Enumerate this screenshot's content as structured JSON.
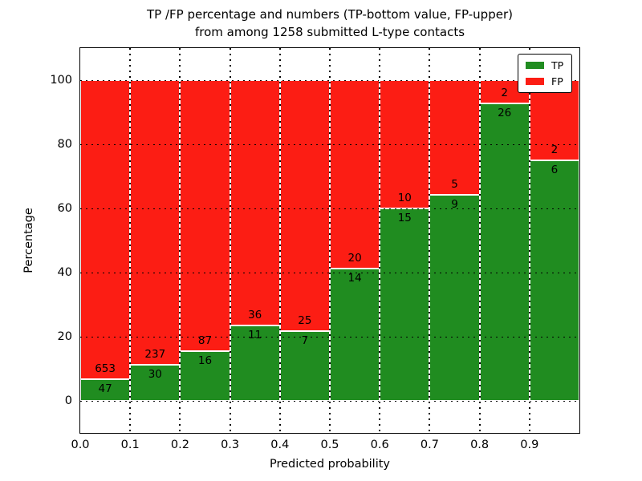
{
  "title": {
    "line1": "TP /FP percentage and numbers (TP-bottom value, FP-upper)",
    "line2": "from among 1258 submitted L-type contacts"
  },
  "chart_data": {
    "type": "bar",
    "stacked": true,
    "normalized_to": 100,
    "title": "TP /FP percentage and numbers (TP-bottom value, FP-upper) from among 1258 submitted L-type contacts",
    "xlabel": "Predicted probability",
    "ylabel": "Percentage",
    "total_contacts": 1258,
    "bin_edges": [
      0.0,
      0.1,
      0.2,
      0.3,
      0.4,
      0.5,
      0.6,
      0.7,
      0.8,
      0.9,
      1.0
    ],
    "categories": [
      "0.0-0.1",
      "0.1-0.2",
      "0.2-0.3",
      "0.3-0.4",
      "0.4-0.5",
      "0.5-0.6",
      "0.6-0.7",
      "0.7-0.8",
      "0.8-0.9",
      "0.9-1.0"
    ],
    "series": [
      {
        "name": "TP",
        "color": "#208c20",
        "counts": [
          47,
          30,
          16,
          11,
          7,
          14,
          15,
          9,
          26,
          6
        ]
      },
      {
        "name": "FP",
        "color": "#fc1d14",
        "counts": [
          653,
          237,
          87,
          36,
          25,
          20,
          10,
          5,
          2,
          2
        ]
      }
    ],
    "tp_percent": [
      6.71,
      11.24,
      15.53,
      23.4,
      21.88,
      41.18,
      60.0,
      64.29,
      92.86,
      75.0
    ],
    "x_ticks": [
      "0.0",
      "0.1",
      "0.2",
      "0.3",
      "0.4",
      "0.5",
      "0.6",
      "0.7",
      "0.8",
      "0.9"
    ],
    "y_ticks": [
      0,
      20,
      40,
      60,
      80,
      100
    ],
    "ylim": [
      -10,
      110
    ],
    "grid": "dotted-black",
    "bar_edge_color": "#ffffff",
    "legend": {
      "position": "upper right",
      "entries": [
        {
          "label": "TP",
          "color": "#208c20"
        },
        {
          "label": "FP",
          "color": "#fc1d14"
        }
      ]
    }
  }
}
